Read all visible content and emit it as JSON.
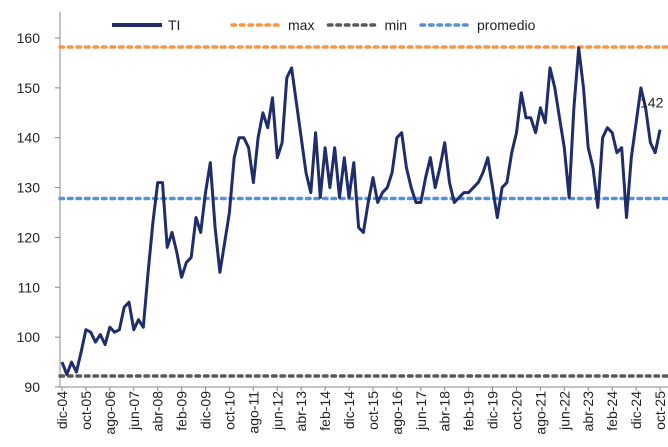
{
  "chart_data": {
    "type": "line",
    "categories": [
      "dic-04",
      null,
      null,
      null,
      null,
      "oct-05",
      null,
      null,
      null,
      null,
      "ago-06",
      null,
      null,
      null,
      null,
      "jun-07",
      null,
      null,
      null,
      null,
      "abr-08",
      null,
      null,
      null,
      null,
      "feb-09",
      null,
      null,
      null,
      null,
      "dic-09",
      null,
      null,
      null,
      null,
      "oct-10",
      null,
      null,
      null,
      null,
      "ago-11",
      null,
      null,
      null,
      null,
      "jun-12",
      null,
      null,
      null,
      null,
      "abr-13",
      null,
      null,
      null,
      null,
      "feb-14",
      null,
      null,
      null,
      null,
      "dic-14",
      null,
      null,
      null,
      null,
      "oct-15",
      null,
      null,
      null,
      null,
      "ago-16",
      null,
      null,
      null,
      null,
      "jun-17",
      null,
      null,
      null,
      null,
      "abr-18",
      null,
      null,
      null,
      null,
      "feb-19",
      null,
      null,
      null,
      null,
      "dic-19",
      null,
      null,
      null,
      null,
      "oct-20",
      null,
      null,
      null,
      null,
      "ago-21",
      null,
      null,
      null,
      null,
      "jun-22",
      null,
      null,
      null,
      null,
      "abr-23",
      null,
      null,
      null,
      null,
      "feb-24",
      null,
      null,
      null,
      null,
      "dic-24",
      null,
      null,
      null,
      null,
      "oct-25"
    ],
    "series": [
      {
        "name": "TI",
        "color": "#1f2d6b",
        "values": [
          95,
          92.5,
          95,
          93,
          97,
          101.5,
          101,
          99,
          100.5,
          98.5,
          102,
          101,
          101.5,
          106,
          107,
          101.5,
          103.5,
          102,
          113,
          123,
          131,
          131,
          118,
          121,
          117,
          112,
          115,
          116,
          124,
          121,
          129,
          135,
          122,
          113,
          119,
          125,
          136,
          140,
          140,
          138,
          131,
          140,
          145,
          142,
          148,
          136,
          139,
          152,
          154,
          147,
          140,
          133,
          129,
          141,
          128,
          138,
          130,
          138,
          128,
          136,
          128,
          135,
          122,
          121,
          127,
          132,
          127,
          129,
          130,
          133,
          140,
          141,
          134,
          130,
          127,
          127,
          132,
          136,
          130,
          134,
          139,
          131,
          127,
          128,
          129,
          129,
          130,
          131,
          133,
          136,
          130,
          124,
          130,
          131,
          137,
          141,
          149,
          144,
          144,
          141,
          146,
          143,
          154,
          150,
          144,
          138,
          128,
          146,
          158,
          150,
          138,
          134,
          126,
          140,
          142,
          141,
          137,
          138,
          124,
          136,
          143,
          150,
          146,
          139,
          137,
          141.6
        ],
        "value_labels": [
          null,
          null,
          null,
          null,
          null,
          null,
          null,
          null,
          null,
          null,
          null,
          null,
          null,
          null,
          null,
          null,
          null,
          null,
          null,
          null,
          null,
          null,
          null,
          null,
          null,
          null,
          null,
          null,
          null,
          null,
          null,
          null,
          null,
          null,
          null,
          null,
          null,
          null,
          null,
          null,
          null,
          null,
          null,
          null,
          null,
          null,
          null,
          null,
          null,
          null,
          null,
          null,
          null,
          null,
          null,
          null,
          null,
          null,
          null,
          null,
          null,
          null,
          null,
          null,
          null,
          null,
          null,
          null,
          null,
          null,
          null,
          null,
          null,
          null,
          null,
          null,
          null,
          null,
          null,
          null,
          null,
          null,
          null,
          null,
          null,
          null,
          null,
          null,
          null,
          null,
          null,
          null,
          null,
          null,
          null,
          null,
          null,
          null,
          null,
          null,
          null,
          null,
          null,
          null,
          null,
          null,
          null,
          null,
          null,
          null,
          null,
          null,
          null,
          null,
          null,
          null,
          null,
          null,
          null,
          null,
          null,
          null,
          null,
          null,
          null,
          "142"
        ]
      }
    ],
    "reference_lines": [
      {
        "name": "max",
        "color": "#f79646",
        "value": 158.2
      },
      {
        "name": "min",
        "color": "#595959",
        "value": 92.2
      },
      {
        "name": "promedio",
        "color": "#5b8fd6",
        "value": 127.8
      }
    ],
    "ylim": [
      90,
      160
    ],
    "yticks": [
      90,
      100,
      110,
      120,
      130,
      140,
      150,
      160
    ],
    "grid": false
  }
}
